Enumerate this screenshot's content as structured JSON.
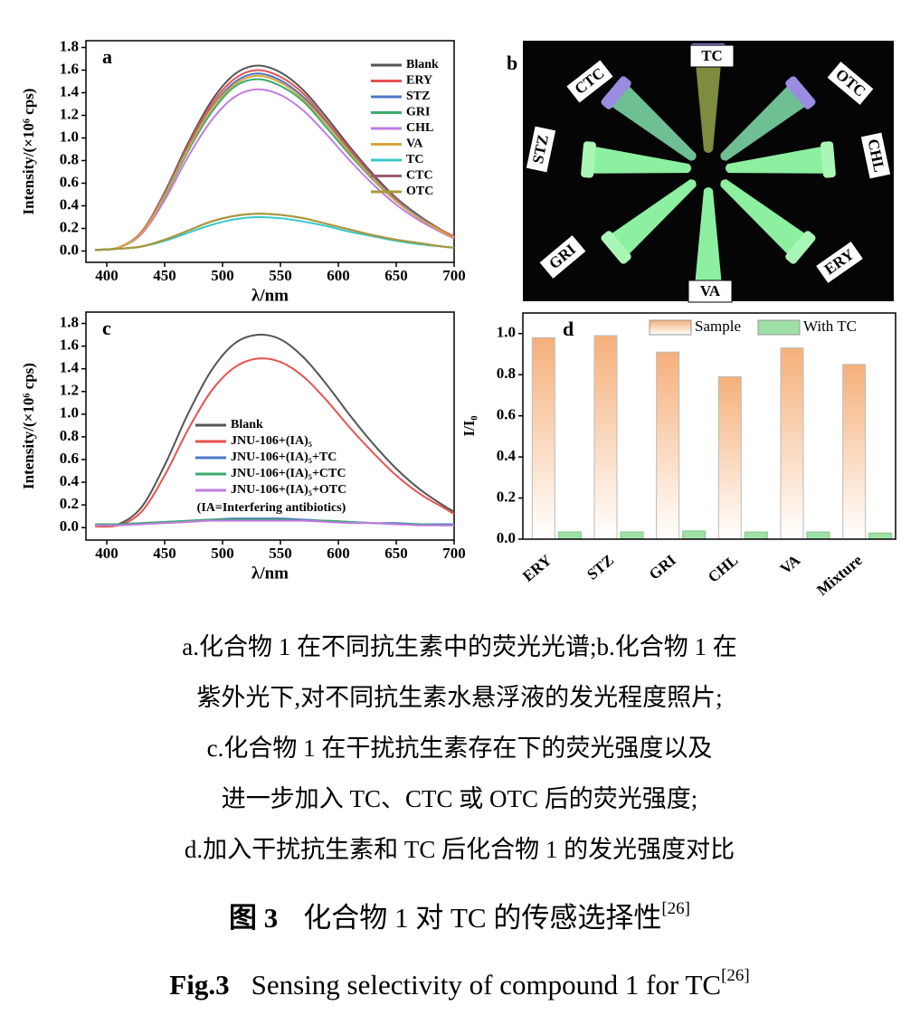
{
  "chart_data": [
    {
      "type": "line",
      "panel": "a",
      "y_label": "Intensity/(×10⁶ cps)",
      "x_label": "λ/nm",
      "x": [
        390,
        410,
        430,
        450,
        470,
        490,
        510,
        530,
        550,
        570,
        590,
        610,
        630,
        650,
        670,
        690,
        700
      ],
      "series": [
        {
          "name": "Blank",
          "color": "#555555",
          "values": [
            0.01,
            0.03,
            0.17,
            0.52,
            0.95,
            1.32,
            1.56,
            1.64,
            1.58,
            1.42,
            1.18,
            0.92,
            0.68,
            0.47,
            0.31,
            0.18,
            0.13
          ]
        },
        {
          "name": "ERY",
          "color": "#e8524f",
          "values": [
            0.01,
            0.03,
            0.17,
            0.51,
            0.93,
            1.29,
            1.52,
            1.6,
            1.54,
            1.39,
            1.15,
            0.9,
            0.66,
            0.46,
            0.3,
            0.18,
            0.13
          ]
        },
        {
          "name": "STZ",
          "color": "#4a78c8",
          "values": [
            0.01,
            0.03,
            0.16,
            0.5,
            0.91,
            1.26,
            1.49,
            1.57,
            1.51,
            1.36,
            1.13,
            0.88,
            0.65,
            0.45,
            0.3,
            0.17,
            0.12
          ]
        },
        {
          "name": "GRI",
          "color": "#3daa6e",
          "values": [
            0.01,
            0.03,
            0.16,
            0.48,
            0.88,
            1.22,
            1.45,
            1.52,
            1.46,
            1.32,
            1.09,
            0.85,
            0.63,
            0.44,
            0.29,
            0.17,
            0.12
          ]
        },
        {
          "name": "CHL",
          "color": "#c07de0",
          "values": [
            0.01,
            0.03,
            0.15,
            0.45,
            0.83,
            1.15,
            1.36,
            1.43,
            1.38,
            1.24,
            1.03,
            0.8,
            0.59,
            0.41,
            0.27,
            0.16,
            0.11
          ]
        },
        {
          "name": "VA",
          "color": "#d9a53a",
          "values": [
            0.01,
            0.03,
            0.16,
            0.49,
            0.9,
            1.25,
            1.47,
            1.55,
            1.49,
            1.34,
            1.12,
            0.87,
            0.64,
            0.44,
            0.29,
            0.17,
            0.12
          ]
        },
        {
          "name": "TC",
          "color": "#3bc9c9",
          "values": [
            0.01,
            0.02,
            0.04,
            0.09,
            0.16,
            0.23,
            0.28,
            0.3,
            0.29,
            0.26,
            0.22,
            0.17,
            0.13,
            0.09,
            0.06,
            0.04,
            0.03
          ]
        },
        {
          "name": "CTC",
          "color": "#9b5c6b",
          "values": [
            0.01,
            0.02,
            0.04,
            0.1,
            0.18,
            0.26,
            0.31,
            0.33,
            0.32,
            0.29,
            0.24,
            0.19,
            0.14,
            0.1,
            0.07,
            0.04,
            0.03
          ]
        },
        {
          "name": "OTC",
          "color": "#a89a3a",
          "values": [
            0.01,
            0.02,
            0.04,
            0.1,
            0.18,
            0.26,
            0.31,
            0.33,
            0.32,
            0.29,
            0.24,
            0.19,
            0.14,
            0.1,
            0.07,
            0.04,
            0.03
          ]
        }
      ],
      "xlim": [
        382,
        700
      ],
      "ylim": [
        -0.1,
        1.86
      ],
      "xticks": [
        400,
        450,
        500,
        550,
        600,
        650,
        700
      ],
      "yticks": [
        {
          "value": 0,
          "label": "0.0"
        },
        {
          "value": 0.2,
          "label": "0.2"
        },
        {
          "value": 0.4,
          "label": "0.4"
        },
        {
          "value": 0.6,
          "label": "0.6"
        },
        {
          "value": 0.8,
          "label": "0.8"
        },
        {
          "value": 1,
          "label": "1.0"
        },
        {
          "value": 1.2,
          "label": "1.2"
        },
        {
          "value": 1.4,
          "label": "1.4"
        },
        {
          "value": 1.6,
          "label": "1.6"
        },
        {
          "value": 1.8,
          "label": "1.8"
        }
      ]
    },
    {
      "type": "line",
      "panel": "c",
      "y_label": "Intensity/(×10⁶ cps)",
      "x_label": "λ/nm",
      "annotation": "(IA=Interfering antibiotics)",
      "x": [
        390,
        410,
        430,
        450,
        470,
        490,
        510,
        530,
        550,
        570,
        590,
        610,
        630,
        650,
        670,
        690,
        700
      ],
      "series": [
        {
          "name": "Blank",
          "color": "#555555",
          "values": [
            0.01,
            0.03,
            0.18,
            0.55,
            1.0,
            1.38,
            1.62,
            1.7,
            1.66,
            1.5,
            1.26,
            0.99,
            0.74,
            0.52,
            0.34,
            0.2,
            0.14
          ]
        },
        {
          "name": "JNU-106+(IA)₅",
          "color": "#e8524f",
          "values": [
            0.01,
            0.02,
            0.14,
            0.46,
            0.86,
            1.2,
            1.41,
            1.49,
            1.46,
            1.33,
            1.12,
            0.88,
            0.66,
            0.46,
            0.3,
            0.18,
            0.12
          ]
        },
        {
          "name": "JNU-106+(IA)₅+TC",
          "color": "#4a78c8",
          "values": [
            0.03,
            0.03,
            0.04,
            0.05,
            0.06,
            0.07,
            0.08,
            0.08,
            0.08,
            0.07,
            0.06,
            0.05,
            0.04,
            0.04,
            0.03,
            0.03,
            0.03
          ]
        },
        {
          "name": "JNU-106+(IA)₅+CTC",
          "color": "#3daa6e",
          "values": [
            0.03,
            0.03,
            0.04,
            0.05,
            0.06,
            0.07,
            0.07,
            0.07,
            0.07,
            0.06,
            0.06,
            0.05,
            0.04,
            0.03,
            0.03,
            0.02,
            0.02
          ]
        },
        {
          "name": "JNU-106+(IA)₅+OTC",
          "color": "#c07de0",
          "values": [
            0.02,
            0.02,
            0.03,
            0.04,
            0.05,
            0.06,
            0.06,
            0.06,
            0.06,
            0.06,
            0.05,
            0.04,
            0.04,
            0.03,
            0.02,
            0.02,
            0.02
          ]
        }
      ],
      "xlim": [
        382,
        700
      ],
      "ylim": [
        -0.11,
        1.9
      ],
      "xticks": [
        400,
        450,
        500,
        550,
        600,
        650,
        700
      ],
      "yticks": [
        {
          "value": 0,
          "label": "0.0"
        },
        {
          "value": 0.2,
          "label": "0.2"
        },
        {
          "value": 0.4,
          "label": "0.4"
        },
        {
          "value": 0.6,
          "label": "0.6"
        },
        {
          "value": 0.8,
          "label": "0.8"
        },
        {
          "value": 1,
          "label": "1.0"
        },
        {
          "value": 1.2,
          "label": "1.2"
        },
        {
          "value": 1.4,
          "label": "1.4"
        },
        {
          "value": 1.6,
          "label": "1.6"
        },
        {
          "value": 1.8,
          "label": "1.8"
        }
      ]
    },
    {
      "type": "bar",
      "panel": "d",
      "y_label": "I/I₀",
      "categories": [
        "ERY",
        "STZ",
        "GRI",
        "CHL",
        "VA",
        "Mixture"
      ],
      "series": [
        {
          "name": "Sample",
          "color": "#f5b07a",
          "values": [
            0.98,
            0.99,
            0.91,
            0.79,
            0.93,
            0.85
          ]
        },
        {
          "name": "With TC",
          "color": "#9fe0a6",
          "values": [
            0.035,
            0.035,
            0.04,
            0.035,
            0.035,
            0.03
          ]
        }
      ],
      "ylim": [
        0,
        1.1
      ],
      "yticks": [
        {
          "value": 0,
          "label": "0.0"
        },
        {
          "value": 0.2,
          "label": "0.2"
        },
        {
          "value": 0.4,
          "label": "0.4"
        },
        {
          "value": 0.6,
          "label": "0.6"
        },
        {
          "value": 0.8,
          "label": "0.8"
        },
        {
          "value": 1,
          "label": "1.0"
        }
      ]
    }
  ],
  "photo": {
    "panel": "b",
    "labels": [
      "TC",
      "CTC",
      "OTC",
      "STZ",
      "CHL",
      "GRI",
      "ERY",
      "VA"
    ]
  },
  "caption": {
    "lines": [
      "a.化合物 1 在不同抗生素中的荧光光谱;b.化合物 1 在",
      "紫外光下,对不同抗生素水悬浮液的发光程度照片;",
      "c.化合物 1 在干扰抗生素存在下的荧光强度以及",
      "进一步加入 TC、CTC 或 OTC 后的荧光强度;",
      "d.加入干扰抗生素和 TC 后化合物 1 的发光强度对比"
    ],
    "zh_label": "图 3",
    "zh_title": "化合物 1 对 TC 的传感选择性",
    "zh_ref": "[26]",
    "en_label": "Fig.3",
    "en_title": "Sensing selectivity of compound 1 for TC",
    "en_ref": "[26]"
  }
}
